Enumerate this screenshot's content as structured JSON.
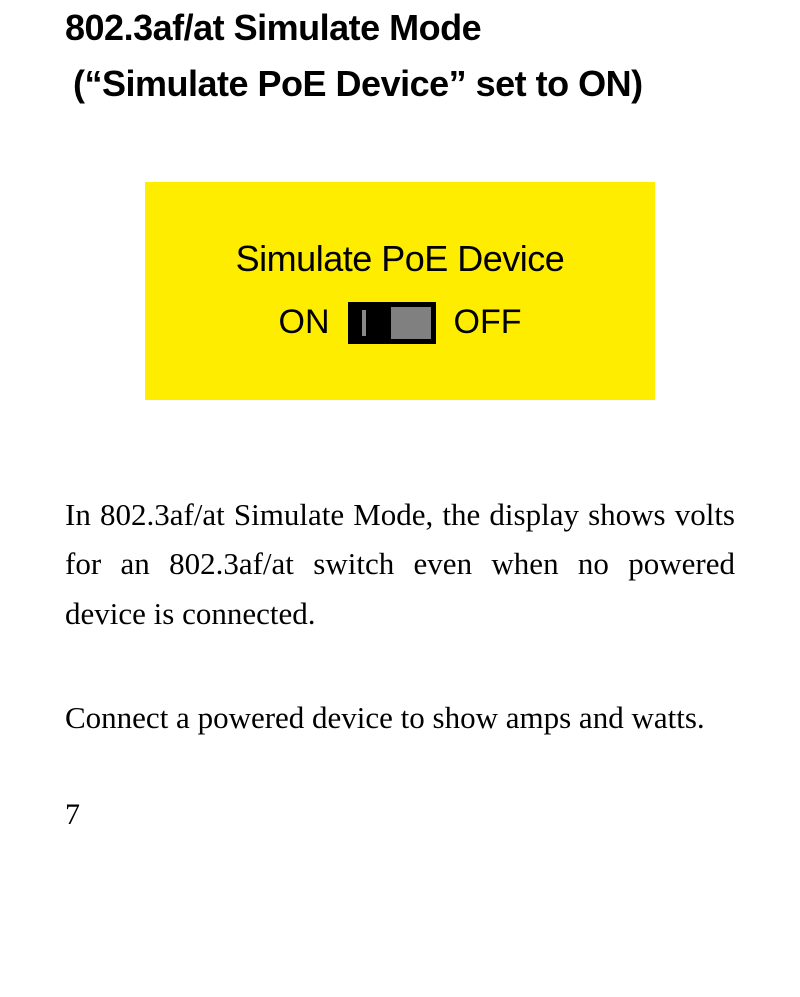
{
  "heading": {
    "line1": "802.3af/at Simulate Mode",
    "line2": "(“Simulate PoE Device” set to ON)"
  },
  "panel": {
    "title": "Simulate PoE Device",
    "on_label": "ON",
    "off_label": "OFF",
    "background_color": "#ffed00",
    "text_color": "#000000",
    "switch_bg": "#000000",
    "knob_color": "#808080"
  },
  "body": {
    "para1": "In 802.3af/at Simulate Mode, the display shows volts for an 802.3af/at switch even when no powered device is connected.",
    "para2": "Connect a powered device to show amps and watts."
  },
  "page_number": "7"
}
